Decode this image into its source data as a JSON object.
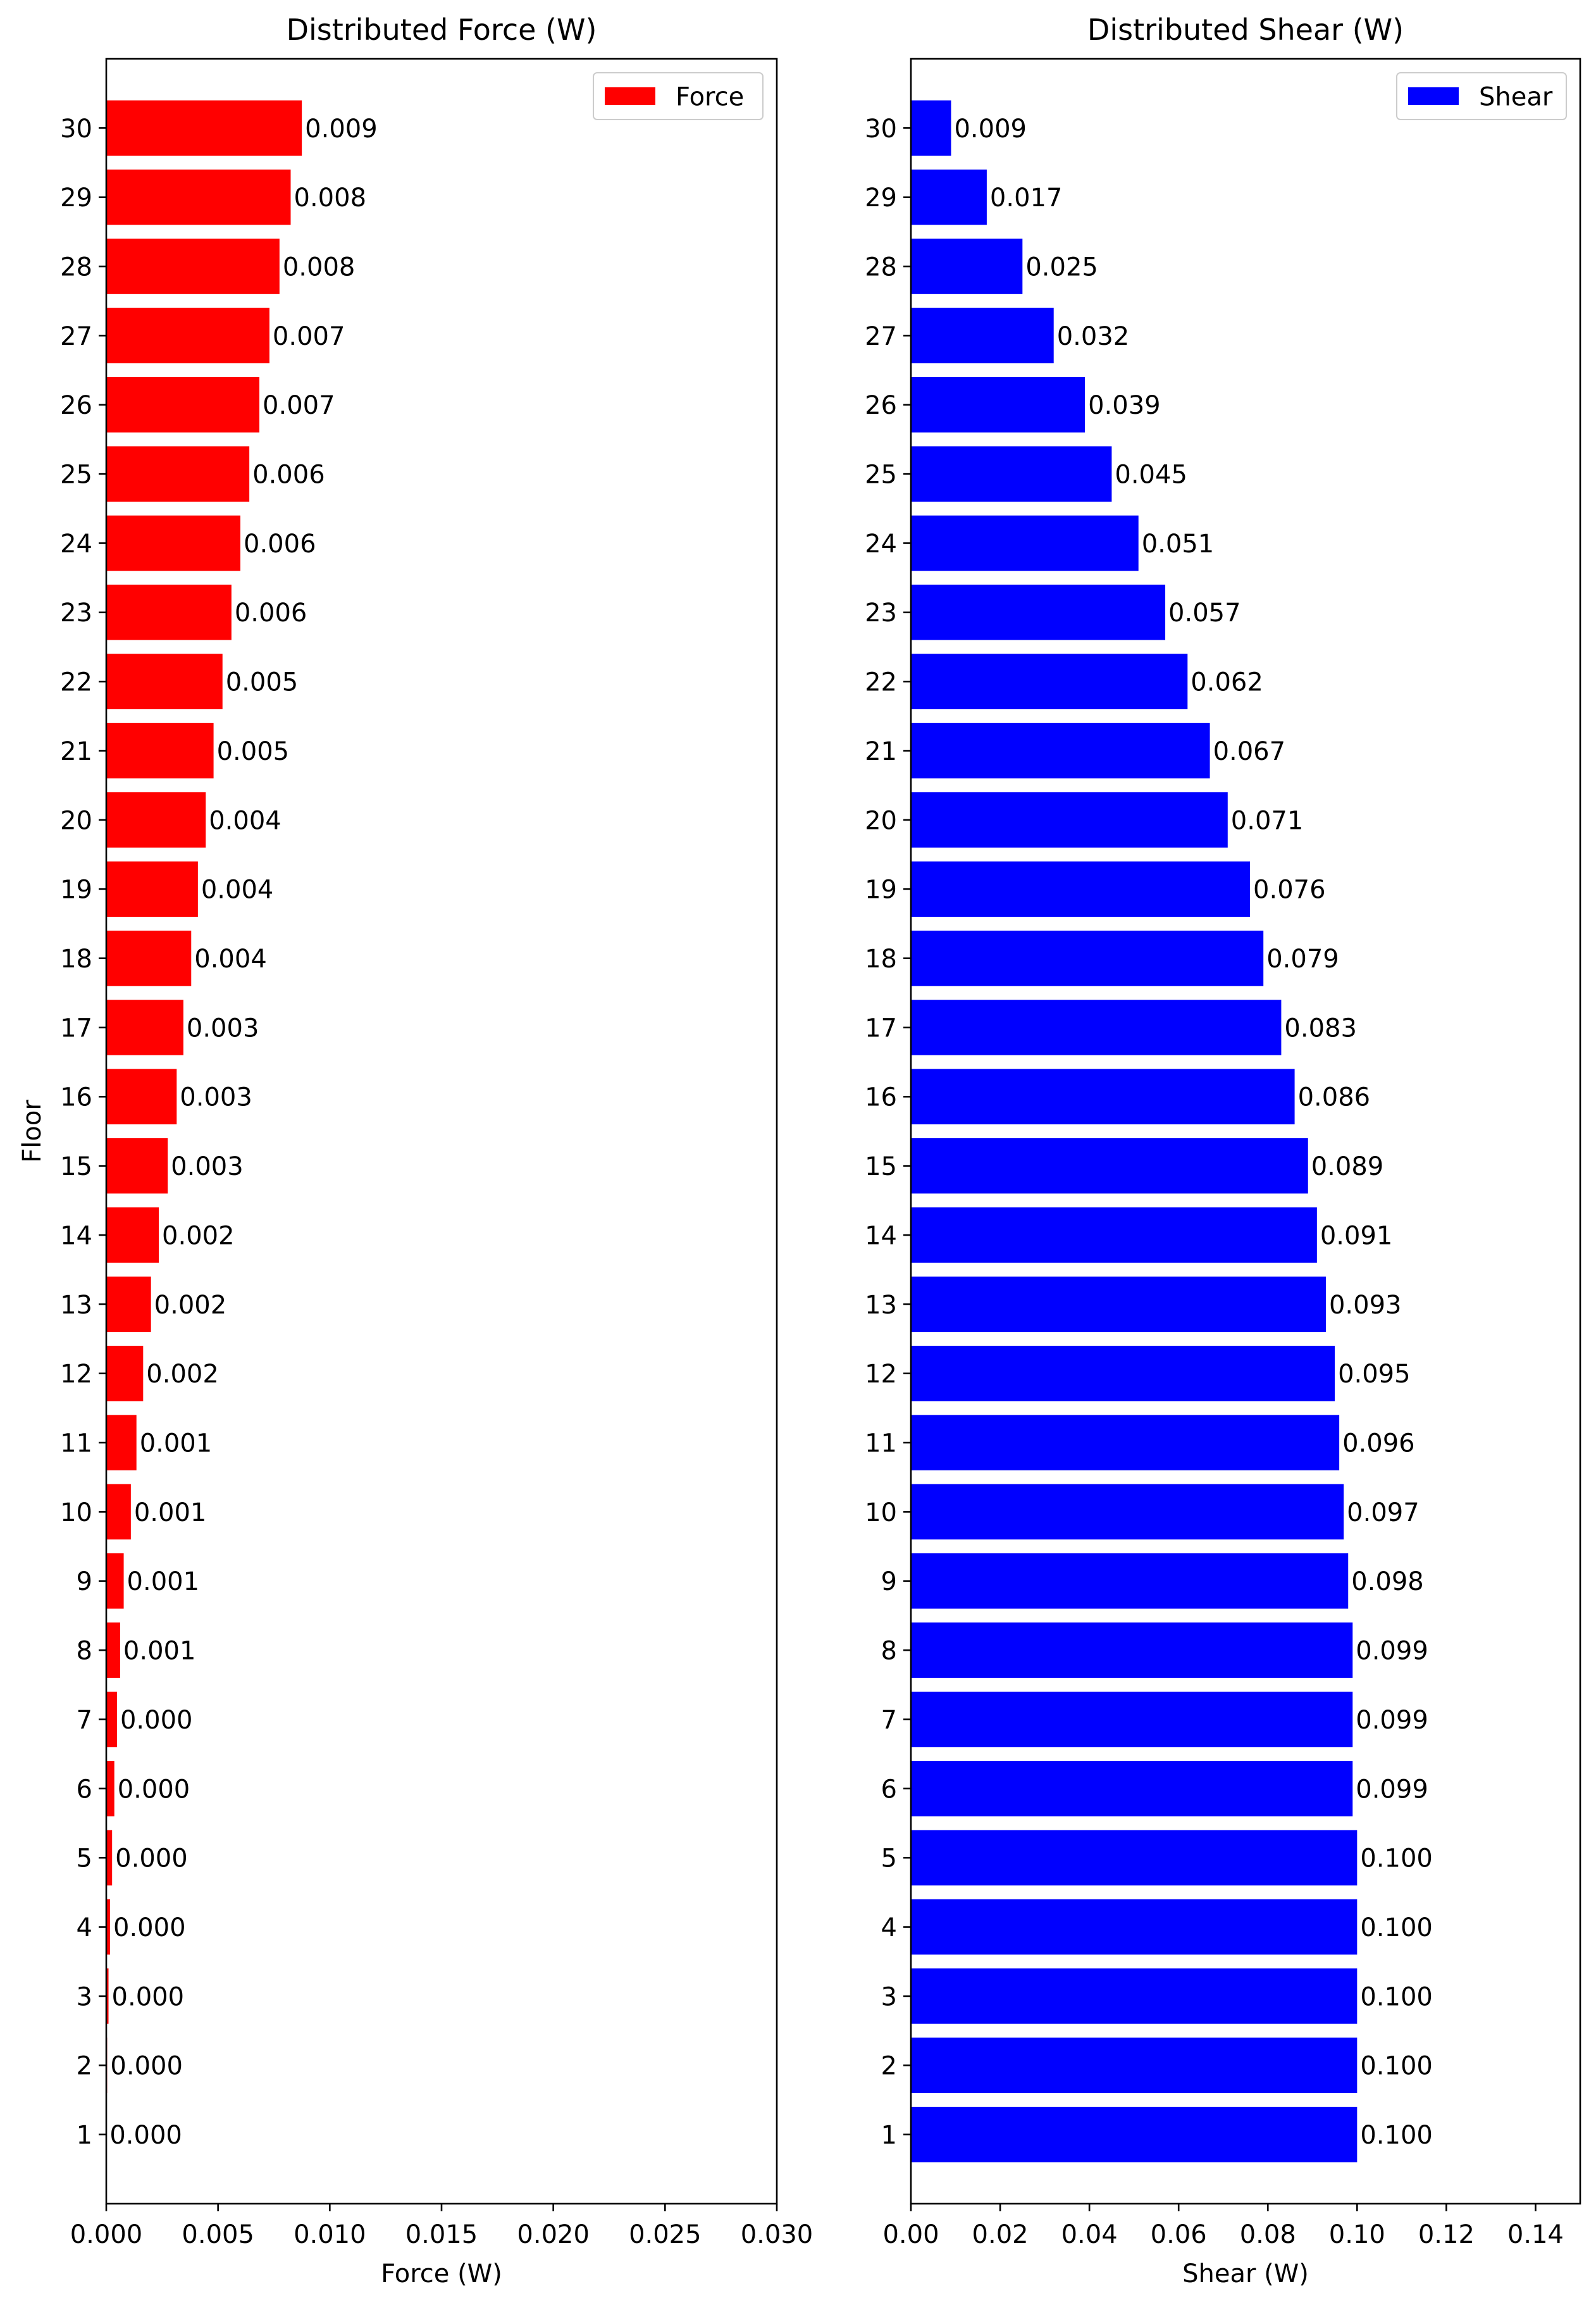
{
  "chart_data": [
    {
      "type": "bar",
      "orientation": "horizontal",
      "title": "Distributed Force (W)",
      "xlabel": "Force (W)",
      "ylabel": "Floor",
      "xlim": [
        0,
        0.03
      ],
      "xticks": [
        0.0,
        0.005,
        0.01,
        0.015,
        0.02,
        0.025,
        0.03
      ],
      "xtick_labels": [
        "0.000",
        "0.005",
        "0.010",
        "0.015",
        "0.020",
        "0.025",
        "0.030"
      ],
      "categories": [
        "1",
        "2",
        "3",
        "4",
        "5",
        "6",
        "7",
        "8",
        "9",
        "10",
        "11",
        "12",
        "13",
        "14",
        "15",
        "16",
        "17",
        "18",
        "19",
        "20",
        "21",
        "22",
        "23",
        "24",
        "25",
        "26",
        "27",
        "28",
        "29",
        "30"
      ],
      "series": [
        {
          "name": "Force",
          "color": "#ff0000",
          "values": [
            1e-05,
            4e-05,
            0.0001,
            0.00017,
            0.00026,
            0.00036,
            0.00048,
            0.00062,
            0.00078,
            0.0011,
            0.00135,
            0.00165,
            0.002,
            0.00235,
            0.00275,
            0.00315,
            0.00345,
            0.0038,
            0.0041,
            0.00445,
            0.0048,
            0.0052,
            0.0056,
            0.006,
            0.0064,
            0.00685,
            0.0073,
            0.00775,
            0.00825,
            0.00875
          ],
          "labels": [
            "0.000",
            "0.000",
            "0.000",
            "0.000",
            "0.000",
            "0.000",
            "0.000",
            "0.001",
            "0.001",
            "0.001",
            "0.001",
            "0.002",
            "0.002",
            "0.002",
            "0.003",
            "0.003",
            "0.003",
            "0.004",
            "0.004",
            "0.004",
            "0.005",
            "0.005",
            "0.006",
            "0.006",
            "0.006",
            "0.007",
            "0.007",
            "0.008",
            "0.008",
            "0.009"
          ]
        }
      ],
      "legend": "top-right",
      "grid": false
    },
    {
      "type": "bar",
      "orientation": "horizontal",
      "title": "Distributed Shear (W)",
      "xlabel": "Shear (W)",
      "ylabel": "",
      "xlim": [
        0,
        0.15
      ],
      "xticks": [
        0.0,
        0.02,
        0.04,
        0.06,
        0.08,
        0.1,
        0.12,
        0.14
      ],
      "xtick_labels": [
        "0.00",
        "0.02",
        "0.04",
        "0.06",
        "0.08",
        "0.10",
        "0.12",
        "0.14"
      ],
      "categories": [
        "1",
        "2",
        "3",
        "4",
        "5",
        "6",
        "7",
        "8",
        "9",
        "10",
        "11",
        "12",
        "13",
        "14",
        "15",
        "16",
        "17",
        "18",
        "19",
        "20",
        "21",
        "22",
        "23",
        "24",
        "25",
        "26",
        "27",
        "28",
        "29",
        "30"
      ],
      "series": [
        {
          "name": "Shear",
          "color": "#0000ff",
          "values": [
            0.1,
            0.1,
            0.1,
            0.1,
            0.1,
            0.099,
            0.099,
            0.099,
            0.098,
            0.097,
            0.096,
            0.095,
            0.093,
            0.091,
            0.089,
            0.086,
            0.083,
            0.079,
            0.076,
            0.071,
            0.067,
            0.062,
            0.057,
            0.051,
            0.045,
            0.039,
            0.032,
            0.025,
            0.017,
            0.009
          ],
          "labels": [
            "0.100",
            "0.100",
            "0.100",
            "0.100",
            "0.100",
            "0.099",
            "0.099",
            "0.099",
            "0.098",
            "0.097",
            "0.096",
            "0.095",
            "0.093",
            "0.091",
            "0.089",
            "0.086",
            "0.083",
            "0.079",
            "0.076",
            "0.071",
            "0.067",
            "0.062",
            "0.057",
            "0.051",
            "0.045",
            "0.039",
            "0.032",
            "0.025",
            "0.017",
            "0.009"
          ]
        }
      ],
      "legend": "top-right",
      "grid": false
    }
  ]
}
